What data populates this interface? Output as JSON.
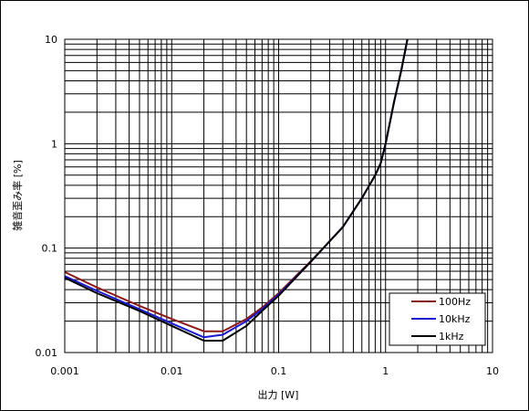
{
  "chart_data": {
    "type": "line",
    "title": "",
    "xlabel": "出力 [W]",
    "ylabel": "雑音歪み率 [%]",
    "xscale": "log",
    "yscale": "log",
    "xlim": [
      0.001,
      10
    ],
    "ylim": [
      0.01,
      10
    ],
    "grid": true,
    "legend_position": "bottom-right",
    "x_ticks": [
      "0.001",
      "0.01",
      "0.1",
      "1",
      "10"
    ],
    "y_ticks": [
      "0.01",
      "0.1",
      "1",
      "10"
    ],
    "series": [
      {
        "name": "100Hz",
        "color": "#8b1a1a",
        "x": [
          0.001,
          0.002,
          0.005,
          0.01,
          0.02,
          0.03,
          0.05,
          0.07,
          0.1,
          0.2,
          0.4,
          0.6,
          0.8,
          0.9,
          1.0,
          1.2,
          1.4,
          1.6
        ],
        "y": [
          0.059,
          0.042,
          0.028,
          0.021,
          0.016,
          0.016,
          0.021,
          0.027,
          0.037,
          0.075,
          0.16,
          0.3,
          0.5,
          0.65,
          1.0,
          2.5,
          5.0,
          10
        ]
      },
      {
        "name": "10kHz",
        "color": "#1a1ad0",
        "x": [
          0.001,
          0.002,
          0.005,
          0.01,
          0.02,
          0.03,
          0.05,
          0.07,
          0.1,
          0.2,
          0.4,
          0.6,
          0.8,
          0.9,
          1.0,
          1.2,
          1.4,
          1.6
        ],
        "y": [
          0.054,
          0.039,
          0.026,
          0.019,
          0.014,
          0.0148,
          0.02,
          0.026,
          0.036,
          0.074,
          0.16,
          0.3,
          0.5,
          0.65,
          1.0,
          2.5,
          5.0,
          10
        ]
      },
      {
        "name": "1kHz",
        "color": "#000000",
        "x": [
          0.001,
          0.002,
          0.005,
          0.01,
          0.02,
          0.03,
          0.05,
          0.07,
          0.1,
          0.2,
          0.4,
          0.6,
          0.8,
          0.9,
          1.0,
          1.2,
          1.4,
          1.6
        ],
        "y": [
          0.052,
          0.037,
          0.025,
          0.018,
          0.013,
          0.013,
          0.018,
          0.025,
          0.035,
          0.074,
          0.16,
          0.3,
          0.5,
          0.65,
          1.0,
          2.5,
          5.0,
          10
        ]
      }
    ]
  }
}
